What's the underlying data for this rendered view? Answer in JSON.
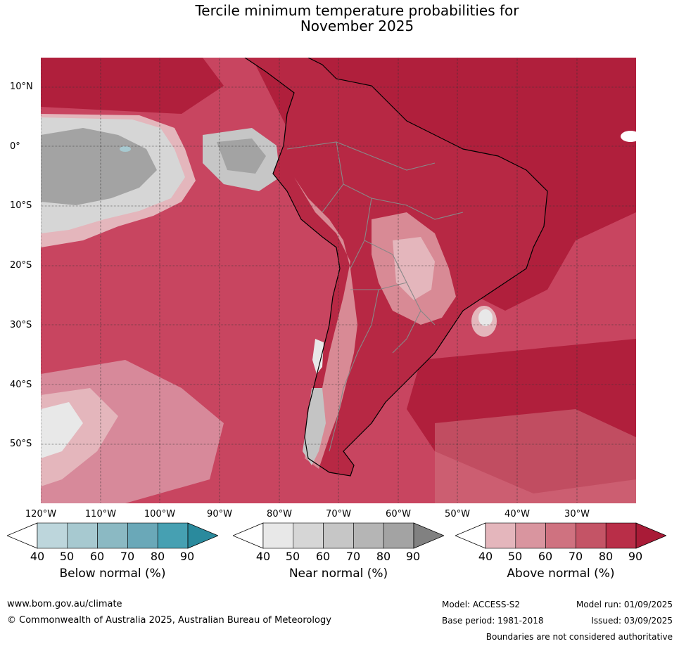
{
  "title": {
    "line1": "Tercile minimum temperature probabilities for",
    "line2": "November 2025"
  },
  "map": {
    "lat_labels": [
      "10°N",
      "0°",
      "10°S",
      "20°S",
      "30°S",
      "40°S",
      "50°S"
    ],
    "lon_labels": [
      "120°W",
      "110°W",
      "100°W",
      "90°W",
      "80°W",
      "70°W",
      "60°W",
      "50°W",
      "40°W",
      "30°W"
    ],
    "colors": {
      "ocean_above": "#c84560",
      "ocean_dark": "#b01f3c",
      "land_above": "#b72844",
      "land_light": "#d88a95",
      "near_normal": "#c4c4c4",
      "near_dark": "#a3a3a3",
      "coastline": "#000000",
      "border": "#888888",
      "gridline": "#333333"
    }
  },
  "legends": {
    "below": {
      "title": "Below normal (%)",
      "ticks": [
        "40",
        "50",
        "60",
        "70",
        "80",
        "90"
      ],
      "colors": [
        "#ffffff",
        "#bdd6dc",
        "#a7c9d0",
        "#8bb9c3",
        "#6aa8b8",
        "#46a0b2",
        "#2a8a9d"
      ]
    },
    "near": {
      "title": "Near normal (%)",
      "ticks": [
        "40",
        "50",
        "60",
        "70",
        "80",
        "90"
      ],
      "colors": [
        "#ffffff",
        "#e8e8e8",
        "#d6d6d6",
        "#c6c6c6",
        "#b5b5b5",
        "#a3a3a3",
        "#818181"
      ]
    },
    "above": {
      "title": "Above normal (%)",
      "ticks": [
        "40",
        "50",
        "60",
        "70",
        "80",
        "90"
      ],
      "colors": [
        "#ffffff",
        "#e4b6bc",
        "#d9959f",
        "#cf7280",
        "#c45466",
        "#b92e48",
        "#a91b37"
      ]
    }
  },
  "footer": {
    "website": "www.bom.gov.au/climate",
    "copyright": "© Commonwealth of Australia 2025, Australian Bureau of Meteorology",
    "model": "Model: ACCESS-S2",
    "model_run": "Model run: 01/09/2025",
    "base_period": "Base period: 1981-2018",
    "issued": "Issued: 03/09/2025",
    "disclaimer": "Boundaries are not considered authoritative"
  }
}
